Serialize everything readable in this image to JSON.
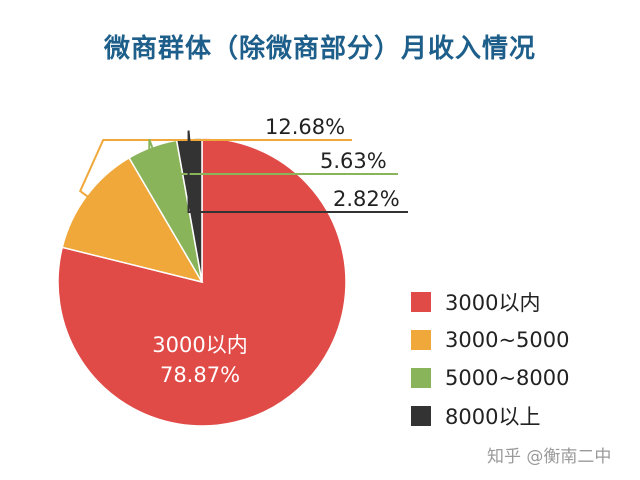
{
  "title": "微商群体（除微商部分）月收入情况",
  "watermark": "知乎 @衡南二中",
  "chart_data": {
    "type": "pie",
    "title": "微商群体（除微商部分）月收入情况",
    "slices": [
      {
        "label": "3000以内",
        "value": 78.87,
        "display": "78.87%",
        "color": "#e04a47"
      },
      {
        "label": "3000~5000",
        "value": 12.68,
        "display": "12.68%",
        "color": "#f0a83a"
      },
      {
        "label": "5000~8000",
        "value": 5.63,
        "display": "5.63%",
        "color": "#8ab45a"
      },
      {
        "label": "8000以上",
        "value": 2.82,
        "display": "2.82%",
        "color": "#333333"
      }
    ],
    "legend_position": "bottom-right"
  }
}
